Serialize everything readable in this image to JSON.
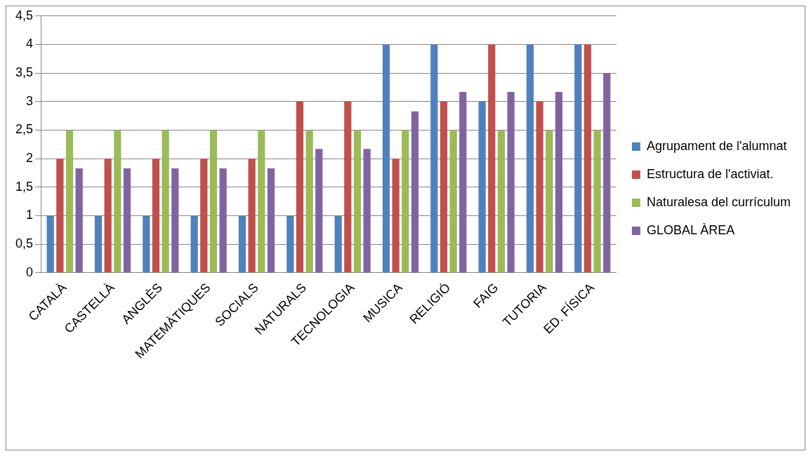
{
  "chart_data": {
    "type": "bar",
    "categories": [
      "CATALÀ",
      "CASTELLÀ",
      "ANGLÈS",
      "MATEMÀTIQUES",
      "SOCIALS",
      "NATURALS",
      "TECNOLOGIA",
      "MUSICA",
      "RELIGIÓ",
      "FAIG",
      "TUTORIA",
      "ED. FÍSICA"
    ],
    "series": [
      {
        "name": "Agrupament de l'alumnat",
        "color": "#4f81bd",
        "values": [
          1,
          1,
          1,
          1,
          1,
          1,
          1,
          4,
          4,
          3,
          4,
          4
        ]
      },
      {
        "name": "Estructura de l'activiat.",
        "color": "#c0504d",
        "values": [
          2,
          2,
          2,
          2,
          2,
          3,
          3,
          2,
          3,
          4,
          3,
          4
        ]
      },
      {
        "name": "Naturalesa del currículum",
        "color": "#9bbb59",
        "values": [
          2.5,
          2.5,
          2.5,
          2.5,
          2.5,
          2.5,
          2.5,
          2.5,
          2.5,
          2.5,
          2.5,
          2.5
        ]
      },
      {
        "name": "GLOBAL ÀREA",
        "color": "#8064a2",
        "values": [
          1.83,
          1.83,
          1.83,
          1.83,
          1.83,
          2.17,
          2.17,
          2.83,
          3.17,
          3.17,
          3.17,
          3.5
        ]
      }
    ],
    "ylim": [
      0,
      4.5
    ],
    "yticks": [
      {
        "value": 0,
        "label": "0"
      },
      {
        "value": 0.5,
        "label": "0,5"
      },
      {
        "value": 1,
        "label": "1"
      },
      {
        "value": 1.5,
        "label": "1,5"
      },
      {
        "value": 2,
        "label": "2"
      },
      {
        "value": 2.5,
        "label": "2,5"
      },
      {
        "value": 3,
        "label": "3"
      },
      {
        "value": 3.5,
        "label": "3,5"
      },
      {
        "value": 4,
        "label": "4"
      },
      {
        "value": 4.5,
        "label": "4,5"
      }
    ],
    "grid": "y",
    "legend": "right"
  }
}
